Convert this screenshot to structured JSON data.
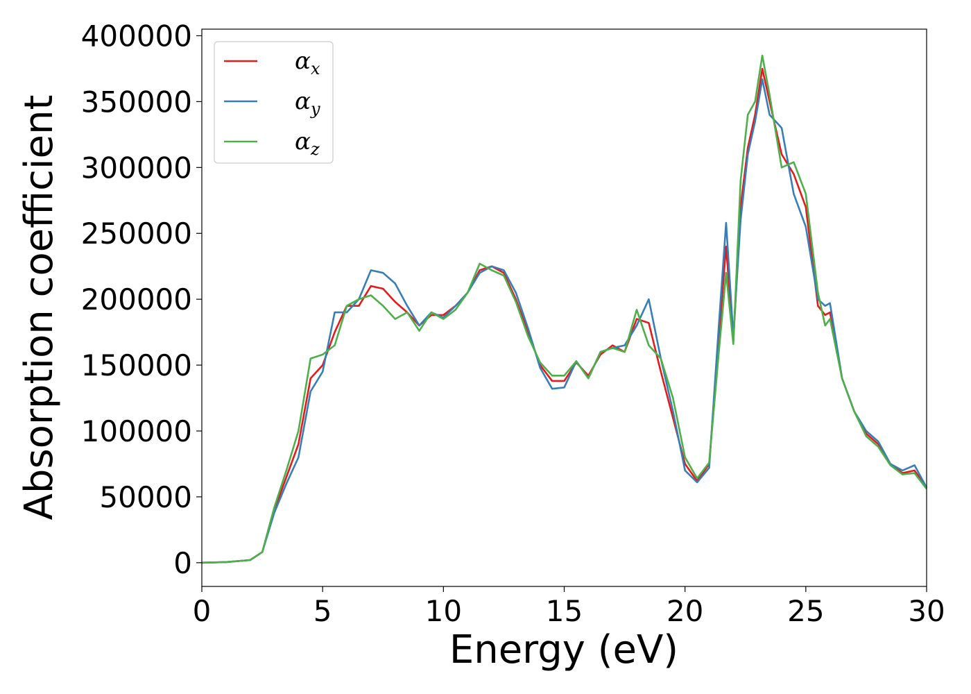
{
  "chart_data": {
    "type": "line",
    "title": "",
    "xlabel": "Energy (eV)",
    "ylabel": "Absorption coefficient",
    "xlim": [
      0,
      30
    ],
    "ylim": [
      -18000,
      405000
    ],
    "xticks": [
      0,
      5,
      10,
      15,
      20,
      25,
      30
    ],
    "xtick_labels": [
      "0",
      "5",
      "10",
      "15",
      "20",
      "25",
      "30"
    ],
    "yticks": [
      0,
      50000,
      100000,
      150000,
      200000,
      250000,
      300000,
      350000,
      400000
    ],
    "ytick_labels": [
      "0",
      "50000",
      "100000",
      "150000",
      "200000",
      "250000",
      "300000",
      "350000",
      "400000"
    ],
    "grid": false,
    "legend_position": "top-left",
    "series": [
      {
        "name": "α",
        "subscript": "x",
        "color": "#e41a1c",
        "x": [
          0,
          1,
          2,
          2.5,
          3,
          3.5,
          4,
          4.5,
          5,
          5.5,
          6,
          6.5,
          7,
          7.5,
          8,
          8.5,
          9,
          9.5,
          10,
          10.5,
          11,
          11.5,
          12,
          12.5,
          13,
          13.5,
          14,
          14.5,
          15,
          15.5,
          16,
          16.5,
          17,
          17.5,
          18,
          18.5,
          19,
          19.5,
          20,
          20.5,
          21,
          21.4,
          21.7,
          22,
          22.3,
          22.6,
          22.9,
          23.2,
          23.5,
          24,
          24.5,
          25,
          25.5,
          25.8,
          26,
          26.5,
          27,
          27.5,
          28,
          28.5,
          29,
          29.5,
          30
        ],
        "y": [
          0,
          500,
          2000,
          8000,
          40000,
          65000,
          90000,
          140000,
          150000,
          175000,
          195000,
          195000,
          210000,
          208000,
          198000,
          190000,
          180000,
          188000,
          188000,
          195000,
          205000,
          222000,
          225000,
          220000,
          200000,
          175000,
          150000,
          138000,
          138000,
          152000,
          142000,
          158000,
          165000,
          160000,
          185000,
          182000,
          145000,
          110000,
          75000,
          62000,
          75000,
          170000,
          240000,
          168000,
          270000,
          315000,
          340000,
          375000,
          350000,
          310000,
          295000,
          270000,
          195000,
          188000,
          190000,
          140000,
          115000,
          98000,
          90000,
          75000,
          68000,
          70000,
          57000
        ]
      },
      {
        "name": "α",
        "subscript": "y",
        "color": "#377eb8",
        "x": [
          0,
          1,
          2,
          2.5,
          3,
          3.5,
          4,
          4.5,
          5,
          5.5,
          6,
          6.5,
          7,
          7.5,
          8,
          8.5,
          9,
          9.5,
          10,
          10.5,
          11,
          11.5,
          12,
          12.5,
          13,
          13.5,
          14,
          14.5,
          15,
          15.5,
          16,
          16.5,
          17,
          17.5,
          18,
          18.5,
          19,
          19.5,
          20,
          20.5,
          21,
          21.4,
          21.7,
          22,
          22.3,
          22.6,
          22.9,
          23.2,
          23.5,
          24,
          24.5,
          25,
          25.5,
          25.8,
          26,
          26.5,
          27,
          27.5,
          28,
          28.5,
          29,
          29.5,
          30
        ],
        "y": [
          0,
          500,
          2000,
          8000,
          38000,
          60000,
          80000,
          130000,
          145000,
          190000,
          190000,
          200000,
          222000,
          220000,
          212000,
          195000,
          180000,
          190000,
          186000,
          195000,
          205000,
          220000,
          225000,
          222000,
          205000,
          178000,
          148000,
          132000,
          133000,
          153000,
          140000,
          160000,
          163000,
          165000,
          180000,
          200000,
          155000,
          115000,
          70000,
          61000,
          72000,
          180000,
          258000,
          172000,
          260000,
          310000,
          335000,
          367000,
          340000,
          330000,
          280000,
          255000,
          200000,
          195000,
          197000,
          140000,
          115000,
          100000,
          92000,
          75000,
          70000,
          74000,
          57000
        ]
      },
      {
        "name": "α",
        "subscript": "z",
        "color": "#4daf4a",
        "x": [
          0,
          1,
          2,
          2.5,
          3,
          3.5,
          4,
          4.5,
          5,
          5.5,
          6,
          6.5,
          7,
          7.5,
          8,
          8.5,
          9,
          9.5,
          10,
          10.5,
          11,
          11.5,
          12,
          12.5,
          13,
          13.5,
          14,
          14.5,
          15,
          15.5,
          16,
          16.5,
          17,
          17.5,
          18,
          18.5,
          19,
          19.5,
          20,
          20.5,
          21,
          21.4,
          21.7,
          22,
          22.3,
          22.6,
          22.9,
          23.2,
          23.5,
          24,
          24.5,
          25,
          25.5,
          25.8,
          26,
          26.5,
          27,
          27.5,
          28,
          28.5,
          29,
          29.5,
          30
        ],
        "y": [
          0,
          500,
          2000,
          8000,
          42000,
          70000,
          100000,
          155000,
          158000,
          165000,
          195000,
          200000,
          203000,
          195000,
          185000,
          190000,
          176000,
          190000,
          185000,
          192000,
          205000,
          227000,
          222000,
          218000,
          198000,
          172000,
          152000,
          142000,
          142000,
          153000,
          140000,
          160000,
          163000,
          160000,
          192000,
          165000,
          155000,
          125000,
          80000,
          64000,
          76000,
          160000,
          220000,
          166000,
          290000,
          340000,
          350000,
          385000,
          355000,
          300000,
          304000,
          280000,
          205000,
          180000,
          185000,
          140000,
          115000,
          96000,
          88000,
          74000,
          67000,
          68000,
          56000
        ]
      }
    ]
  }
}
